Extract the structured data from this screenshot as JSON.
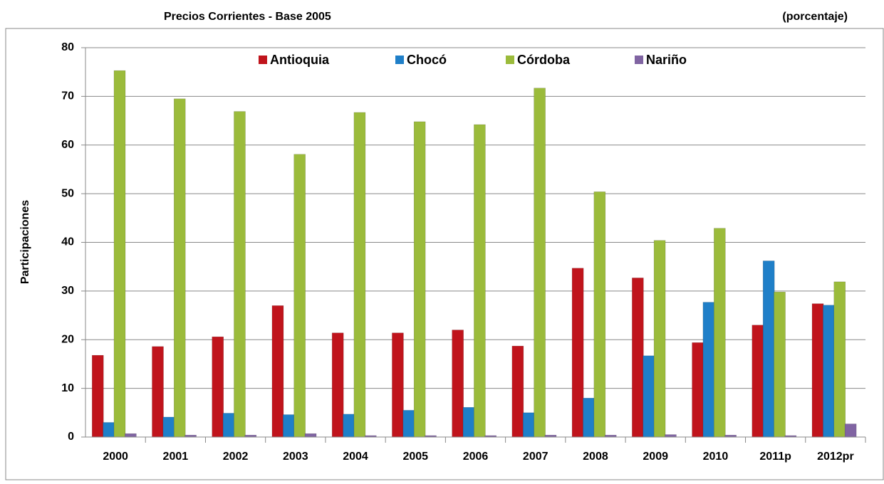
{
  "chart_data": {
    "type": "bar",
    "title": "Precios Corrientes  - Base 2005",
    "subtitle": "(porcentaje)",
    "y_label": "Participaciones",
    "categories": [
      "2000",
      "2001",
      "2002",
      "2003",
      "2004",
      "2005",
      "2006",
      "2007",
      "2008",
      "2009",
      "2010",
      "2011p",
      "2012pr"
    ],
    "series": [
      {
        "name": "Antioquia",
        "color": "#c0141c",
        "values": [
          16.8,
          18.6,
          20.6,
          27.0,
          21.4,
          21.4,
          22.0,
          18.7,
          34.7,
          32.7,
          19.4,
          23.0,
          27.4
        ]
      },
      {
        "name": "Chocó",
        "color": "#1f7fc8",
        "values": [
          3.0,
          4.1,
          4.9,
          4.6,
          4.7,
          5.5,
          6.1,
          5.0,
          8.0,
          16.7,
          27.7,
          36.2,
          27.1
        ]
      },
      {
        "name": "Córdoba",
        "color": "#9bbb3b",
        "values": [
          75.3,
          69.5,
          66.9,
          58.1,
          66.7,
          64.8,
          64.2,
          71.7,
          50.4,
          40.4,
          42.9,
          29.8,
          31.9
        ]
      },
      {
        "name": "Nariño",
        "color": "#8064a2",
        "values": [
          0.7,
          0.4,
          0.4,
          0.7,
          0.3,
          0.3,
          0.3,
          0.4,
          0.4,
          0.5,
          0.4,
          0.3,
          2.7
        ]
      }
    ],
    "ylim": [
      0,
      80
    ],
    "yticks": [
      0,
      10,
      20,
      30,
      40,
      50,
      60,
      70,
      80
    ],
    "grid": true,
    "legend": "top"
  }
}
